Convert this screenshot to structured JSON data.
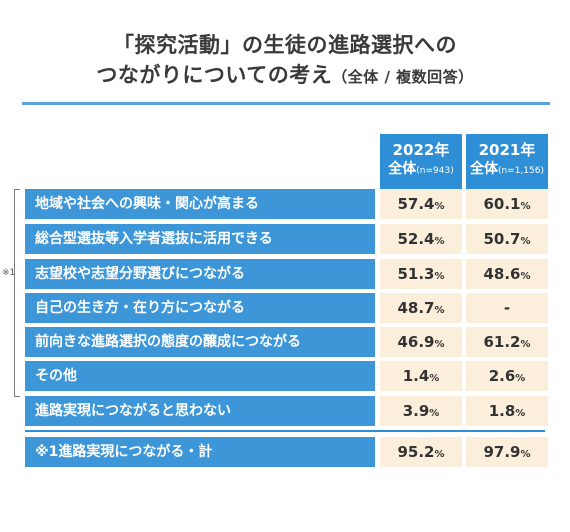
{
  "title": {
    "line1": "「探究活動」の生徒の進路選択への",
    "line2": "つながりについての考え",
    "line2_small": "（全体 / 複数回答）"
  },
  "columns": [
    {
      "year": "2022年",
      "label": "全体",
      "n": "(n=943)"
    },
    {
      "year": "2021年",
      "label": "全体",
      "n": "(n=1,156)"
    }
  ],
  "note_mark": "※1",
  "colors": {
    "header": "#2f8fd6",
    "row_label": "#3c96d8",
    "cell": "#fbefdc",
    "rule": "#5aa5dc"
  },
  "chart_data": {
    "type": "table",
    "title": "「探究活動」の生徒の進路選択へのつながりについての考え（全体 / 複数回答）",
    "columns": [
      "2022年 全体(n=943)",
      "2021年 全体(n=1,156)"
    ],
    "rows": [
      {
        "label": "地域や社会への興味・関心が高まる",
        "v2022": "57.4",
        "v2021": "60.1",
        "unit": "%"
      },
      {
        "label": "総合型選抜等入学者選抜に活用できる",
        "v2022": "52.4",
        "v2021": "50.7",
        "unit": "%"
      },
      {
        "label": "志望校や志望分野選びにつながる",
        "v2022": "51.3",
        "v2021": "48.6",
        "unit": "%"
      },
      {
        "label": "自己の生き方・在り方につながる",
        "v2022": "48.7",
        "v2021": "-",
        "unit": "%"
      },
      {
        "label": "前向きな進路選択の態度の醸成につながる",
        "v2022": "46.9",
        "v2021": "61.2",
        "unit": "%"
      },
      {
        "label": "その他",
        "v2022": "1.4",
        "v2021": "2.6",
        "unit": "%"
      },
      {
        "label": "進路実現につながると思わない",
        "v2022": "3.9",
        "v2021": "1.8",
        "unit": "%"
      },
      {
        "label": "※1進路実現につながる・計",
        "v2022": "95.2",
        "v2021": "97.9",
        "unit": "%"
      }
    ]
  }
}
